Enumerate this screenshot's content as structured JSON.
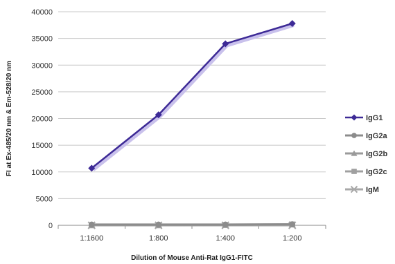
{
  "chart_data": {
    "type": "line",
    "title": "",
    "xlabel": "Dilution of Mouse Anti-Rat IgG1-FITC",
    "ylabel": "FI at Ex-485/20 nm & Em-528/20 nm",
    "categories": [
      "1:1600",
      "1:800",
      "1:400",
      "1:200"
    ],
    "ylim": [
      0,
      40000
    ],
    "yticks": [
      0,
      5000,
      10000,
      15000,
      20000,
      25000,
      30000,
      35000,
      40000
    ],
    "grid": true,
    "legend_position": "right",
    "series": [
      {
        "name": "IgG1",
        "marker": "diamond",
        "color": "#3d2a96",
        "values": [
          10700,
          20700,
          34000,
          37800
        ]
      },
      {
        "name": "IgG2a",
        "marker": "circle",
        "color": "#8c8c8c",
        "values": [
          150,
          150,
          150,
          200
        ]
      },
      {
        "name": "IgG2b",
        "marker": "triangle",
        "color": "#9a9a9a",
        "values": [
          100,
          100,
          100,
          150
        ]
      },
      {
        "name": "IgG2c",
        "marker": "square",
        "color": "#a0a0a0",
        "values": [
          0,
          0,
          50,
          150
        ]
      },
      {
        "name": "IgM",
        "marker": "cross",
        "color": "#a8a8a8",
        "values": [
          0,
          0,
          0,
          0
        ]
      }
    ]
  }
}
